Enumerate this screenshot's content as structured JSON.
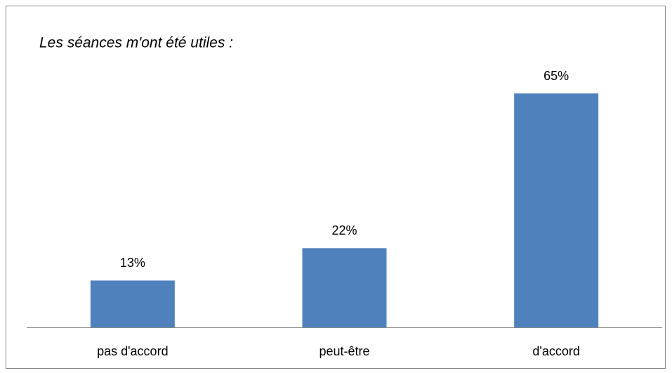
{
  "chart_data": {
    "type": "bar",
    "title": "Les séances m'ont été utiles :",
    "categories": [
      "pas d'accord",
      "peut-être",
      "d'accord"
    ],
    "values": [
      13,
      22,
      65
    ],
    "value_labels": [
      "13%",
      "22%",
      "65%"
    ],
    "color": "#4f81bd"
  }
}
